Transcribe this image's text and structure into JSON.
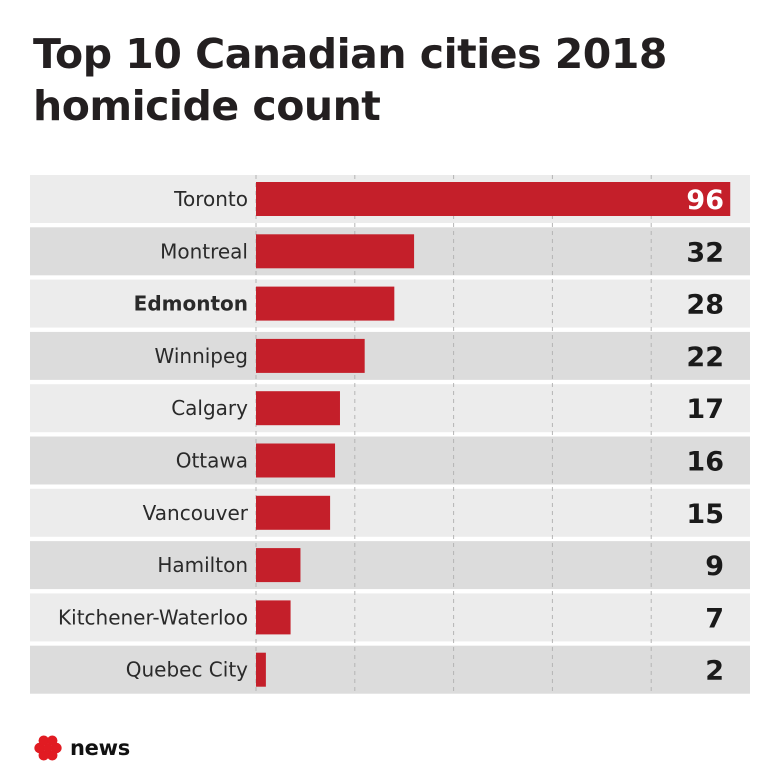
{
  "chart_data": {
    "type": "bar",
    "orientation": "horizontal",
    "title": "Top 10 Canadian cities 2018 homicide count",
    "title_lines": [
      "Top 10 Canadian cities 2018",
      "homicide count"
    ],
    "categories": [
      "Toronto",
      "Montreal",
      "Edmonton",
      "Winnipeg",
      "Calgary",
      "Ottawa",
      "Vancouver",
      "Hamilton",
      "Kitchener-Waterloo",
      "Quebec City"
    ],
    "values": [
      96,
      32,
      28,
      22,
      17,
      16,
      15,
      9,
      7,
      2
    ],
    "highlighted_category": "Edmonton",
    "xlim": [
      0,
      100
    ],
    "grid": true,
    "bar_color": "#c41f2a",
    "row_colors": [
      "#ececec",
      "#dcdcdc"
    ],
    "value_label_color": "#1a1a1a",
    "value_label_on_bar_color": "#ffffff"
  },
  "branding": {
    "logo_text": "news",
    "logo_icon": "cbc-gem-icon",
    "logo_color": "#e11b22"
  }
}
